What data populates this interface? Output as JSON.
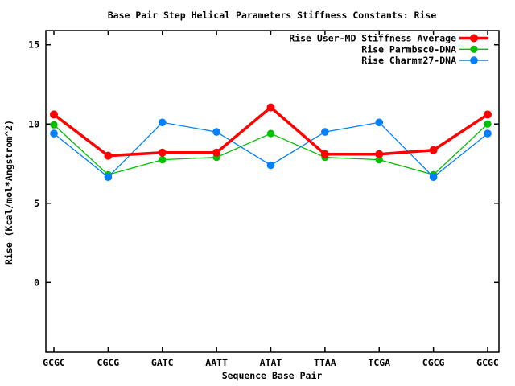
{
  "chart_data": {
    "type": "line",
    "title": "Base Pair Step Helical Parameters Stiffness Constants: Rise",
    "xlabel": "Sequence Base Pair",
    "ylabel": "Rise (Kcal/mol*Angstrom^2)",
    "categories": [
      "GCGC",
      "CGCG",
      "GATC",
      "AATT",
      "ATAT",
      "TTAA",
      "TCGA",
      "CGCG",
      "GCGC"
    ],
    "series": [
      {
        "name": "Rise User-MD Stiffness Average",
        "color": "#ff0000",
        "line_width": 3.5,
        "marker_radius": 5,
        "draw_order": 3,
        "values": [
          10.6,
          8.0,
          8.2,
          8.2,
          11.05,
          8.1,
          8.1,
          8.35,
          10.6
        ]
      },
      {
        "name": "Rise Parmbsc0-DNA",
        "color": "#00c000",
        "line_width": 1.3,
        "marker_radius": 4.6,
        "draw_order": 1,
        "values": [
          9.95,
          6.8,
          7.75,
          7.9,
          9.4,
          7.9,
          7.75,
          6.8,
          10.0
        ]
      },
      {
        "name": "Rise Charmm27-DNA",
        "color": "#0080ff",
        "line_width": 1.3,
        "marker_radius": 4.8,
        "draw_order": 2,
        "values": [
          9.4,
          6.65,
          10.1,
          9.5,
          7.4,
          9.5,
          10.1,
          6.65,
          9.4
        ]
      }
    ],
    "y_ticks": [
      0,
      5,
      10,
      15
    ],
    "ylim": [
      -4.4,
      15.9
    ],
    "grid": false,
    "legend_position": "top-right-inside",
    "background_color": "#ffffff",
    "axis_color": "#000000",
    "text_color": "#000000"
  }
}
